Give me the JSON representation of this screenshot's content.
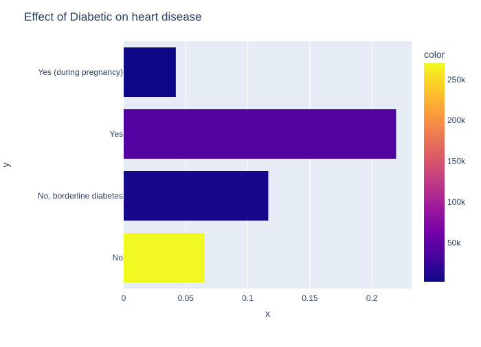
{
  "chart_data": {
    "type": "bar",
    "orientation": "horizontal",
    "title": "Effect of Diabetic on heart disease",
    "xlabel": "x",
    "ylabel": "y",
    "categories": [
      "No",
      "No, borderline diabetes",
      "Yes",
      "Yes (during pregnancy)"
    ],
    "values": [
      0.065,
      0.1165,
      0.2195,
      0.042
    ],
    "color_values": [
      270000,
      7000,
      40000,
      2500
    ],
    "xlim": [
      0,
      0.232
    ],
    "xticks": [
      0,
      0.05,
      0.1,
      0.15,
      0.2
    ],
    "xtick_labels": [
      "0",
      "0.05",
      "0.1",
      "0.15",
      "0.2"
    ],
    "grid": true,
    "colorbar": {
      "title": "color",
      "range": [
        2500,
        270000
      ],
      "ticks": [
        50000,
        100000,
        150000,
        200000,
        250000
      ],
      "tick_labels": [
        "50k",
        "100k",
        "150k",
        "200k",
        "250k"
      ],
      "colorscale": [
        "#0d0887",
        "#46039f",
        "#7201a8",
        "#9c179e",
        "#bd3786",
        "#d8576b",
        "#ed7953",
        "#fb9f3a",
        "#fdca26",
        "#f0f921"
      ]
    },
    "plot_bg": "#e5ecf6",
    "text_color": "#2a3f5f"
  }
}
